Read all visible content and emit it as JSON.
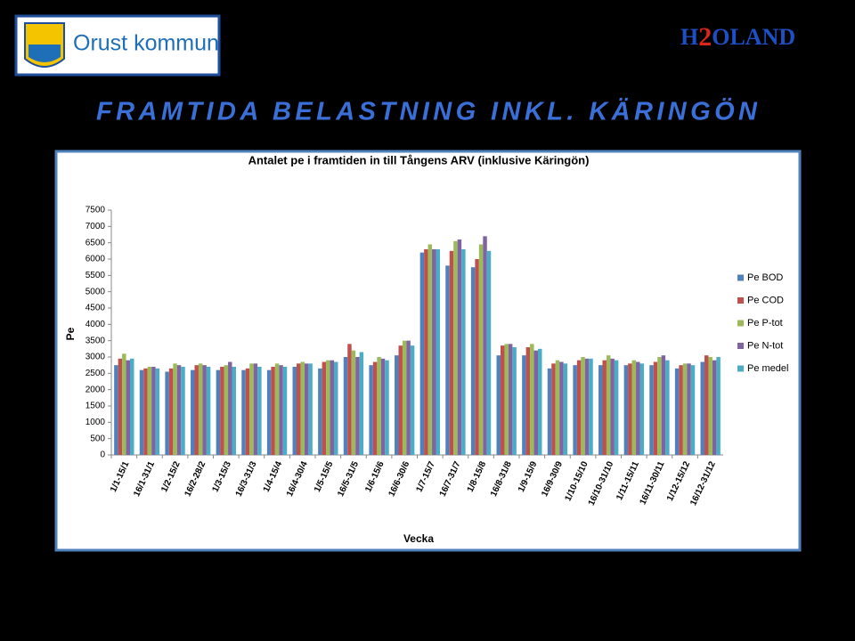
{
  "header": {
    "logo": "Orust kommun",
    "brand": [
      "H",
      "2",
      "OLAND"
    ],
    "title": "FRAMTIDA BELASTNING INKL. KÄRINGÖN"
  },
  "chart_data": {
    "type": "bar",
    "title": "Antalet  pe i framtiden  in  till Tångens  ARV (inklusive  Käringön)",
    "x_label": "Vecka",
    "y_label": "Pe",
    "categories": [
      "1/1-15/1",
      "16/1-31/1",
      "1/2-15/2",
      "16/2-28/2",
      "1/3-15/3",
      "16/3-31/3",
      "1/4-15/4",
      "16/4-30/4",
      "1/5-15/5",
      "16/5-31/5",
      "1/6-15/6",
      "16/6-30/6",
      "1/7-15/7",
      "16/7-31/7",
      "1/8-15/8",
      "16/8-31/8",
      "1/9-15/9",
      "16/9-30/9",
      "1/10-15/10",
      "16/10-31/10",
      "1/11-15/11",
      "16/11-30/11",
      "1/12-15/12",
      "16/12-31/12"
    ],
    "series": [
      {
        "name": "Pe BOD",
        "color": "#4f81bd",
        "values": [
          2750,
          2600,
          2550,
          2600,
          2600,
          2600,
          2600,
          2700,
          2650,
          3000,
          2750,
          3050,
          6200,
          5800,
          5750,
          3050,
          3050,
          2650,
          2750,
          2750,
          2750,
          2750,
          2650,
          2850
        ]
      },
      {
        "name": "Pe COD",
        "color": "#c0504d",
        "values": [
          2950,
          2650,
          2650,
          2750,
          2700,
          2650,
          2700,
          2800,
          2850,
          3400,
          2850,
          3350,
          6300,
          6250,
          6000,
          3350,
          3300,
          2800,
          2900,
          2900,
          2800,
          2850,
          2750,
          3050
        ]
      },
      {
        "name": "Pe P-tot",
        "color": "#9bbb59",
        "values": [
          3100,
          2700,
          2800,
          2800,
          2750,
          2800,
          2800,
          2850,
          2900,
          3200,
          3000,
          3500,
          6450,
          6550,
          6450,
          3400,
          3400,
          2900,
          3000,
          3050,
          2900,
          3000,
          2800,
          3000
        ]
      },
      {
        "name": "Pe N-tot",
        "color": "#8064a2",
        "values": [
          2900,
          2700,
          2750,
          2750,
          2850,
          2800,
          2750,
          2800,
          2900,
          3000,
          2950,
          3500,
          6300,
          6600,
          6700,
          3400,
          3200,
          2850,
          2950,
          2950,
          2850,
          3050,
          2800,
          2900
        ]
      },
      {
        "name": "Pe medel",
        "color": "#4bacc6",
        "values": [
          2950,
          2650,
          2700,
          2700,
          2700,
          2700,
          2700,
          2800,
          2850,
          3150,
          2900,
          3350,
          6300,
          6300,
          6250,
          3300,
          3250,
          2800,
          2950,
          2900,
          2800,
          2900,
          2750,
          3000
        ]
      }
    ],
    "ylim": [
      0,
      7500
    ],
    "yticks": [
      0,
      500,
      1000,
      1500,
      2000,
      2500,
      3000,
      3500,
      4000,
      4500,
      5000,
      5500,
      6000,
      6500,
      7000,
      7500
    ],
    "grid": false,
    "legend": "right"
  }
}
